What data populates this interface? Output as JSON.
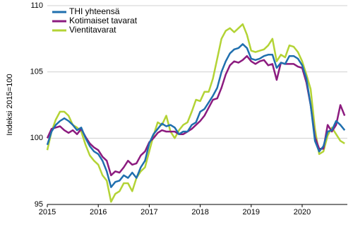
{
  "chart_data": {
    "type": "line",
    "y_label": "Indeksi 2015=100",
    "categories": [
      "2015",
      null,
      null,
      null,
      null,
      null,
      null,
      null,
      null,
      null,
      null,
      null,
      "2016",
      null,
      null,
      null,
      null,
      null,
      null,
      null,
      null,
      null,
      null,
      null,
      "2017",
      null,
      null,
      null,
      null,
      null,
      null,
      null,
      null,
      null,
      null,
      null,
      "2018",
      null,
      null,
      null,
      null,
      null,
      null,
      null,
      null,
      null,
      null,
      null,
      "2019",
      null,
      null,
      null,
      null,
      null,
      null,
      null,
      null,
      null,
      null,
      null,
      "2020",
      null,
      null,
      null,
      null,
      null,
      null,
      null,
      null,
      null,
      null
    ],
    "series": [
      {
        "name": "THI yhteensä",
        "color": "#1f6fae",
        "values": [
          99.5,
          100.5,
          101.0,
          101.3,
          101.5,
          101.3,
          101.0,
          100.6,
          100.8,
          100.0,
          99.4,
          99.0,
          98.8,
          98.3,
          97.5,
          96.3,
          96.7,
          96.8,
          97.2,
          97.0,
          97.4,
          97.0,
          97.8,
          98.3,
          99.6,
          100.3,
          100.7,
          101.1,
          100.9,
          101.0,
          100.8,
          100.3,
          100.5,
          100.5,
          101.0,
          101.2,
          102.0,
          102.2,
          102.7,
          103.2,
          103.8,
          105.0,
          105.8,
          106.4,
          106.7,
          106.8,
          107.1,
          106.8,
          106.0,
          105.9,
          106.0,
          106.2,
          106.3,
          106.3,
          105.3,
          105.7,
          105.6,
          106.2,
          106.2,
          106.0,
          105.5,
          104.5,
          102.5,
          99.8,
          99.0,
          99.4,
          100.5,
          100.6,
          101.3,
          101.0,
          100.6
        ]
      },
      {
        "name": "Kotimaiset tavarat",
        "color": "#8c1b7f",
        "values": [
          100.0,
          100.7,
          100.8,
          100.9,
          100.6,
          100.4,
          100.6,
          100.3,
          100.7,
          100.1,
          99.6,
          99.3,
          99.1,
          98.6,
          98.3,
          97.2,
          97.5,
          97.4,
          97.8,
          98.3,
          98.0,
          98.1,
          98.7,
          99.0,
          99.7,
          100.0,
          100.4,
          100.6,
          100.5,
          100.5,
          100.5,
          100.3,
          100.3,
          100.5,
          100.7,
          101.0,
          101.3,
          101.7,
          102.3,
          102.9,
          103.0,
          103.8,
          104.8,
          105.5,
          105.8,
          105.7,
          105.9,
          106.2,
          105.8,
          105.6,
          105.8,
          105.9,
          105.5,
          105.6,
          104.4,
          105.7,
          105.6,
          105.6,
          105.6,
          105.4,
          105.3,
          104.2,
          102.5,
          100.1,
          99.2,
          99.2,
          101.0,
          100.5,
          101.0,
          102.5,
          101.7
        ]
      },
      {
        "name": "Vientitavarat",
        "color": "#b3d335",
        "values": [
          99.1,
          100.5,
          101.4,
          102.0,
          102.0,
          101.7,
          101.0,
          100.8,
          100.5,
          99.5,
          98.7,
          98.3,
          98.0,
          97.2,
          96.8,
          95.2,
          95.8,
          96.0,
          96.6,
          96.6,
          96.0,
          97.0,
          97.5,
          97.8,
          99.0,
          100.2,
          101.2,
          101.0,
          101.7,
          100.5,
          100.0,
          100.6,
          101.0,
          101.2,
          102.0,
          102.9,
          102.8,
          103.5,
          103.5,
          104.5,
          106.0,
          107.5,
          108.1,
          108.3,
          108.0,
          108.3,
          108.6,
          107.8,
          106.6,
          106.5,
          106.6,
          106.7,
          107.0,
          107.5,
          105.8,
          106.3,
          106.1,
          107.0,
          106.9,
          106.5,
          105.8,
          104.8,
          103.7,
          100.7,
          98.8,
          99.0,
          100.2,
          100.8,
          100.3,
          99.8,
          99.6
        ]
      }
    ],
    "ylim": [
      95,
      110
    ],
    "yticks": [
      95,
      100,
      105,
      110
    ],
    "grid": true
  }
}
